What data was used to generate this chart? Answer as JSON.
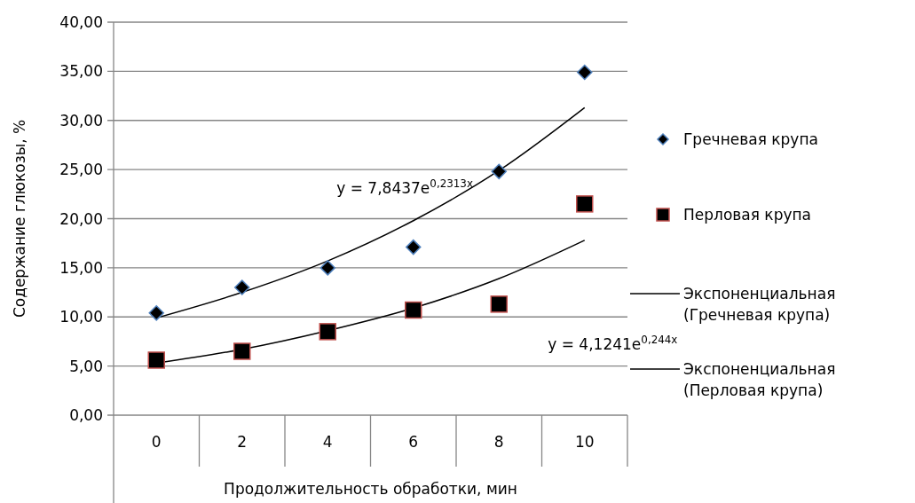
{
  "chart_data": {
    "type": "scatter",
    "xlabel": "Продолжительность обработки, мин",
    "ylabel": "Содержание глюкозы, %",
    "categories": [
      "0",
      "2",
      "4",
      "6",
      "8",
      "10"
    ],
    "series": [
      {
        "name": "Гречневая крупа",
        "marker": "diamond",
        "color": "#000000",
        "values": [
          10.4,
          13.0,
          15.0,
          17.1,
          24.8,
          34.9
        ]
      },
      {
        "name": "Перловая крупа",
        "marker": "square",
        "color": "#000000",
        "values": [
          5.6,
          6.5,
          8.5,
          10.7,
          11.3,
          21.5
        ]
      },
      {
        "name": "Экспоненциальная (Гречневая крупа)",
        "type": "line",
        "marker": "none",
        "color": "#000000",
        "values": [
          9.9,
          12.5,
          15.7,
          19.8,
          24.9,
          31.3
        ]
      },
      {
        "name": "Экспоненциальная (Перловая крупа)",
        "type": "line",
        "marker": "none",
        "color": "#000000",
        "values": [
          5.3,
          6.7,
          8.6,
          10.9,
          13.9,
          17.8
        ]
      }
    ],
    "annotations": [
      "y = 7,8437e$^{0,2313x}$",
      "y = 4,1241e$^{0,244x}$"
    ],
    "ylim": [
      0,
      40
    ],
    "yticks": [
      {
        "value": 0,
        "label": "0,00"
      },
      {
        "value": 5,
        "label": "5,00"
      },
      {
        "value": 10,
        "label": "10,00"
      },
      {
        "value": 15,
        "label": "15,00"
      },
      {
        "value": 20,
        "label": "20,00"
      },
      {
        "value": 25,
        "label": "25,00"
      },
      {
        "value": 30,
        "label": "30,00"
      },
      {
        "value": 35,
        "label": "35,00"
      },
      {
        "value": 40,
        "label": "40,00"
      }
    ],
    "grid": "y",
    "legend": "right"
  }
}
